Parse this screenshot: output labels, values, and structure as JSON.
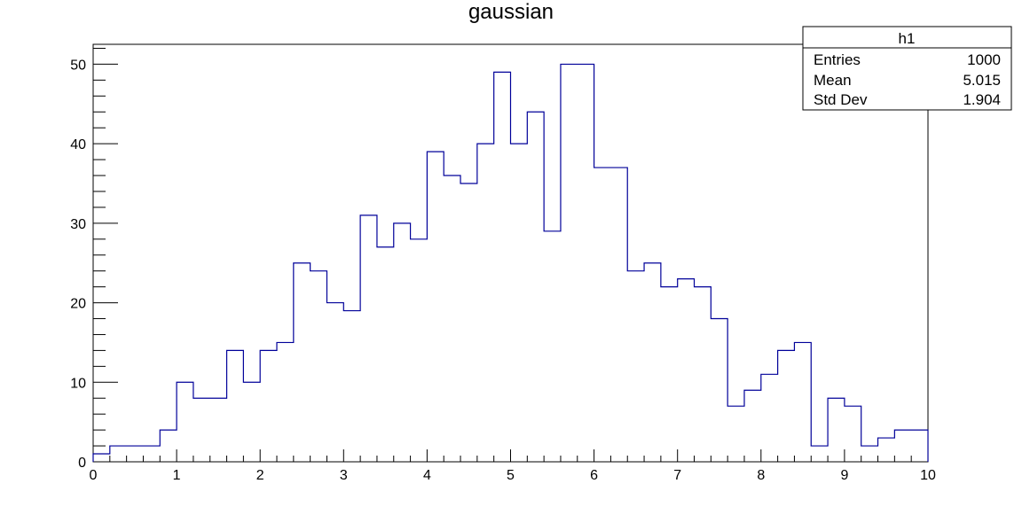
{
  "chart_data": {
    "type": "bar",
    "title": "gaussian",
    "xlabel": "",
    "ylabel": "",
    "xlim": [
      0,
      10
    ],
    "ylim": [
      0,
      52.5
    ],
    "bin_width": 0.2,
    "bin_edges_start": 0,
    "values": [
      1,
      2,
      2,
      2,
      4,
      10,
      8,
      8,
      14,
      10,
      14,
      15,
      25,
      24,
      20,
      19,
      31,
      27,
      30,
      28,
      39,
      36,
      35,
      40,
      49,
      40,
      44,
      29,
      50,
      50,
      37,
      37,
      24,
      25,
      22,
      23,
      22,
      18,
      7,
      9,
      11,
      14,
      15,
      2,
      8,
      7,
      2,
      3,
      4,
      4
    ],
    "x_ticks": [
      0,
      1,
      2,
      3,
      4,
      5,
      6,
      7,
      8,
      9,
      10
    ],
    "y_ticks": [
      0,
      10,
      20,
      30,
      40,
      50
    ],
    "line_color": "#000099",
    "grid": false,
    "stats_box": {
      "placement": "top-right",
      "name": "h1",
      "rows": [
        {
          "label": "Entries",
          "value": "1000"
        },
        {
          "label": "Mean",
          "value": "5.015"
        },
        {
          "label": "Std Dev",
          "value": "1.904"
        }
      ]
    }
  }
}
